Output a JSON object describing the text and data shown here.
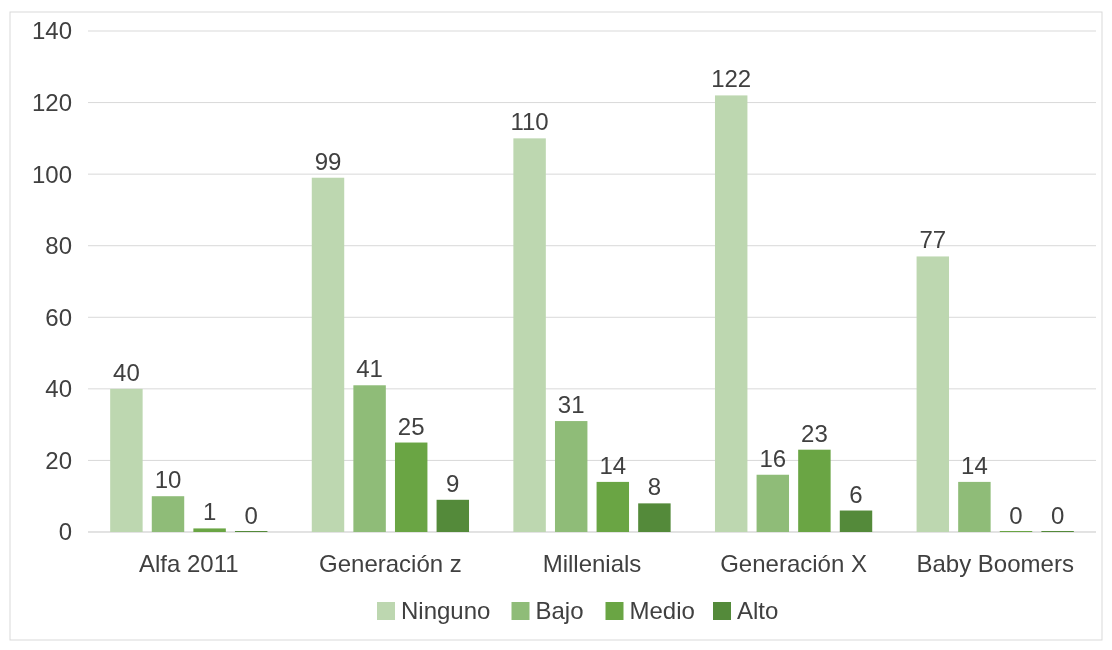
{
  "chart_data": {
    "type": "bar",
    "categories": [
      "Alfa 2011",
      "Generación z",
      "Millenials",
      "Generación X",
      "Baby Boomers"
    ],
    "series": [
      {
        "name": "Ninguno",
        "color": "#bdd7b0",
        "values": [
          40,
          99,
          110,
          122,
          77
        ]
      },
      {
        "name": "Bajo",
        "color": "#8fbc78",
        "values": [
          10,
          41,
          31,
          16,
          14
        ]
      },
      {
        "name": "Medio",
        "color": "#6aa544",
        "values": [
          1,
          25,
          14,
          23,
          0
        ]
      },
      {
        "name": "Alto",
        "color": "#548a3a",
        "values": [
          0,
          9,
          8,
          6,
          0
        ]
      }
    ],
    "ylim": [
      0,
      140
    ],
    "yticks": [
      0,
      20,
      40,
      60,
      80,
      100,
      120,
      140
    ],
    "grid": "y",
    "legend": "bottom",
    "data_labels": true
  }
}
